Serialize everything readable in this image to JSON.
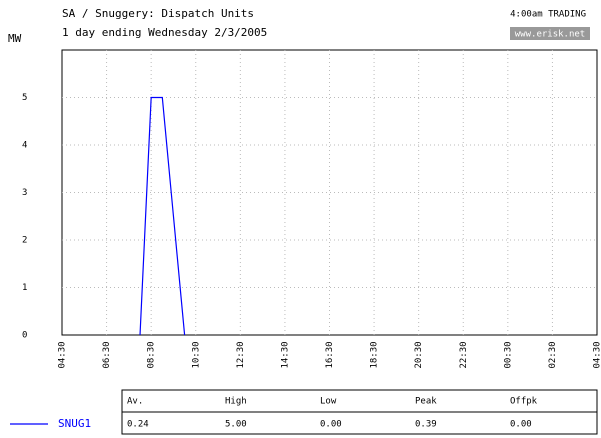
{
  "chart_data": {
    "type": "line",
    "title": "SA / Snuggery: Dispatch Units",
    "subtitle": "1 day ending Wednesday 2/3/2005",
    "trading_label": "4:00am TRADING",
    "source": "www.erisk.net",
    "y_label": "MW",
    "xlim": [
      0,
      24
    ],
    "xticks": [
      {
        "value": 0,
        "label": "04:30"
      },
      {
        "value": 2,
        "label": "06:30"
      },
      {
        "value": 4,
        "label": "08:30"
      },
      {
        "value": 6,
        "label": "10:30"
      },
      {
        "value": 8,
        "label": "12:30"
      },
      {
        "value": 10,
        "label": "14:30"
      },
      {
        "value": 12,
        "label": "16:30"
      },
      {
        "value": 14,
        "label": "18:30"
      },
      {
        "value": 16,
        "label": "20:30"
      },
      {
        "value": 18,
        "label": "22:30"
      },
      {
        "value": 20,
        "label": "00:30"
      },
      {
        "value": 22,
        "label": "02:30"
      },
      {
        "value": 24,
        "label": "04:30"
      }
    ],
    "ylim": [
      0,
      6
    ],
    "yticks": [
      0,
      1,
      2,
      3,
      4,
      5
    ],
    "grid": true,
    "x": [
      3.5,
      4.0,
      4.5,
      5.5
    ],
    "series": [
      {
        "name": "SNUG1",
        "color": "#0000ff",
        "values": [
          0,
          5,
          5,
          0
        ]
      }
    ],
    "stats": {
      "headers": [
        "Av.",
        "High",
        "Low",
        "Peak",
        "Offpk"
      ],
      "values": [
        "0.24",
        "5.00",
        "0.00",
        "0.39",
        "0.00"
      ]
    }
  }
}
